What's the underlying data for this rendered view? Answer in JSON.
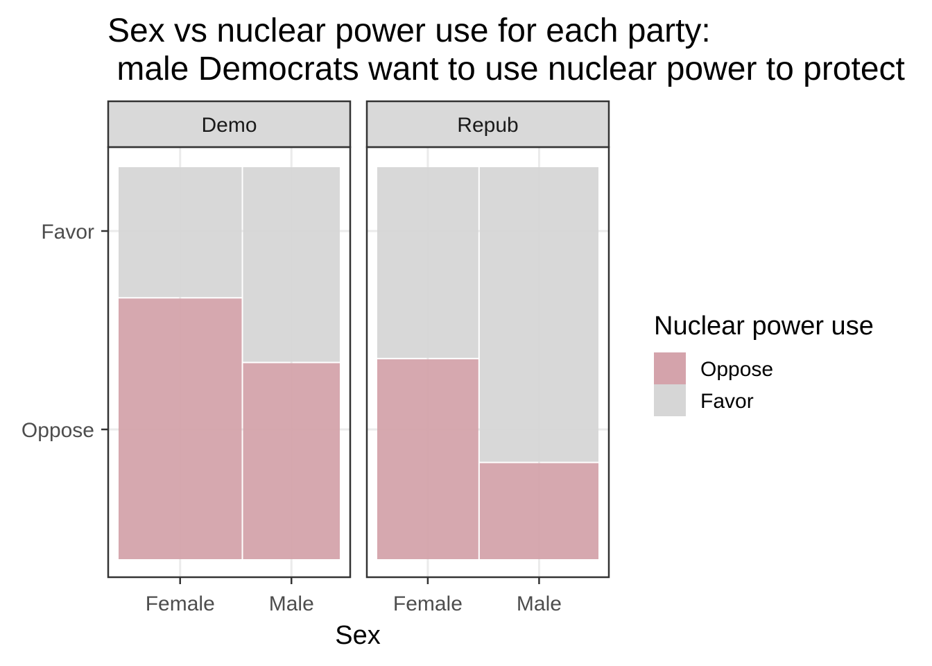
{
  "chart_data": {
    "type": "mosaic",
    "title_line1": "Sex vs nuclear power use for each party:",
    "title_line2": " male Democrats want to use nuclear power to protect",
    "xlabel": "Sex",
    "ylabel": "",
    "y_tick_labels": [
      "Favor",
      "Oppose"
    ],
    "legend": {
      "title": "Nuclear power use",
      "placement": "right",
      "entries": [
        {
          "name": "Oppose",
          "color": "#d4a3ab"
        },
        {
          "name": "Favor",
          "color": "#d6d6d6"
        }
      ]
    },
    "grid": true,
    "panels": [
      {
        "label": "Demo",
        "categories": [
          "Female",
          "Male"
        ],
        "column_share": [
          0.56,
          0.44
        ],
        "oppose_share": [
          0.665,
          0.5
        ]
      },
      {
        "label": "Repub",
        "categories": [
          "Female",
          "Male"
        ],
        "column_share": [
          0.46,
          0.54
        ],
        "oppose_share": [
          0.51,
          0.245
        ]
      }
    ]
  }
}
